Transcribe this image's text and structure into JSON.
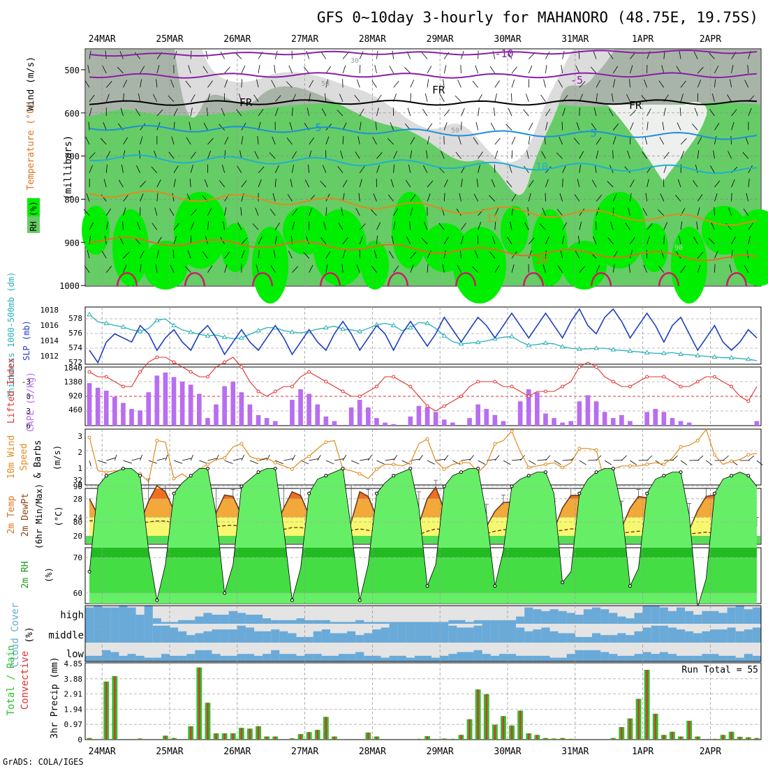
{
  "title": "GFS 0~10day 3-hourly for MAHANORO (48.75E, 19.75S)",
  "footer": "GrADS: COLA/IGES",
  "dates": [
    "24MAR",
    "25MAR",
    "26MAR",
    "27MAR",
    "28MAR",
    "29MAR",
    "30MAR",
    "31MAR",
    "1APR",
    "2APR"
  ],
  "colors": {
    "rh_light": "#dcdcdc",
    "rh_mid": "#a9b4a8",
    "rh_green": "#66cc66",
    "rh_bright": "#00ee00",
    "temp_purple": "#8a1ea8",
    "temp_blue": "#1e90d8",
    "temp_orange": "#e08a1e",
    "slp": "#1f3fbf",
    "thickness": "#2ab0b8",
    "lifted": "#e03030",
    "cape": "#b86ef0",
    "wind": "#e08a1e",
    "cloud": "#6aaad8",
    "precip_total": "#2ec02e",
    "precip_conv": "#e03030"
  },
  "panels": {
    "upper": {
      "ylabel": "(millibars)",
      "legend_wind": "Wind (m/s)",
      "legend_temp": "Temperature (°C)",
      "legend_rh": "RH (%)",
      "yticks": [
        "500",
        "600",
        "700",
        "800",
        "900",
        "1000"
      ],
      "contour_labels": [
        "-10",
        "-5",
        "FR",
        "FR",
        "FR",
        "5",
        "5",
        "10",
        "15",
        "20",
        "30",
        "50",
        "50",
        "90"
      ]
    },
    "slp": {
      "label_thick": "Thickness 1000-500mb (dm)",
      "label_slp": "SLP (mb)",
      "yticks_left": [
        "578",
        "576",
        "574",
        "572"
      ],
      "yticks_right": [
        "1018",
        "1016",
        "1014",
        "1012"
      ]
    },
    "cape": {
      "label_li": "Lifted Index",
      "label_cape": "CAPE (J/kg)",
      "yticks_left": [
        "-3",
        "0",
        "3",
        "6"
      ],
      "yticks_right": [
        "1840",
        "1380",
        "920",
        "460"
      ]
    },
    "wind": {
      "label1": "10m Wind",
      "label2": "Speed",
      "label3": "& Barbs",
      "label4": "(m/s)",
      "yticks": [
        "3",
        "2",
        "1",
        "0"
      ]
    },
    "temp": {
      "label1": "2m Temp",
      "label2": "2m DewPt",
      "label3": "(6hr Min/Max)",
      "label4": "(°C)",
      "yticks": [
        "32",
        "28",
        "24",
        "20"
      ]
    },
    "rh2m": {
      "label1": "2m RH",
      "label2": "(%)",
      "yticks": [
        "90",
        "80",
        "70",
        "60"
      ]
    },
    "cloud": {
      "label1": "Cloud Cover",
      "label2": "(%)",
      "levels": [
        "high",
        "middle",
        "low"
      ]
    },
    "precip": {
      "label1": "Total / Rain",
      "label2": "Convective",
      "label3": "3hr Precip (mm)",
      "run_total": "Run Total = 55",
      "yticks": [
        "4.85",
        "3.88",
        "2.91",
        "1.94",
        "0.97",
        "0"
      ]
    }
  },
  "chart_data": {
    "type": "meteogram",
    "x_start": "23MAR 18Z",
    "step_hours": 3,
    "n_steps": 80,
    "slp_mb": [
      1013,
      1011.5,
      1014,
      1015,
      1014.5,
      1014,
      1016,
      1015,
      1013,
      1014.5,
      1015.5,
      1014,
      1013,
      1015,
      1016,
      1014.5,
      1012.5,
      1014,
      1015.5,
      1014,
      1013,
      1014.5,
      1016,
      1014.5,
      1012.5,
      1014,
      1015.5,
      1014,
      1013,
      1015,
      1016.5,
      1015,
      1013,
      1014.5,
      1016,
      1015,
      1013,
      1015,
      1016.5,
      1015,
      1013.5,
      1015,
      1017,
      1015.5,
      1014,
      1015.5,
      1017,
      1016,
      1014.5,
      1016,
      1017.5,
      1016,
      1014.5,
      1016,
      1017.5,
      1016,
      1014.5,
      1016.5,
      1018,
      1016,
      1015,
      1017,
      1018,
      1016.5,
      1014.5,
      1016,
      1017.5,
      1016,
      1014,
      1016,
      1017,
      1015,
      1013,
      1014.5,
      1016,
      1014,
      1013,
      1014,
      1015.5,
      1014.5
    ],
    "thickness_dm": [
      578.5,
      577.5,
      577.3,
      577,
      576.8,
      576.4,
      576.2,
      576.6,
      577.7,
      577.9,
      577,
      576.4,
      576.1,
      575.8,
      575.6,
      575.7,
      575.4,
      575.2,
      575.3,
      575.8,
      576.3,
      576.7,
      576.7,
      576.3,
      576.1,
      576,
      576.2,
      576.5,
      576.7,
      576.9,
      576.5,
      576.4,
      576.2,
      576.6,
      577.1,
      577.3,
      577,
      576.3,
      576.7,
      577.4,
      577.3,
      576.6,
      575.6,
      574.8,
      574.5,
      574.6,
      574.7,
      574.9,
      575.2,
      575.4,
      575.5,
      574.8,
      574.3,
      574.4,
      574.6,
      574.5,
      574.1,
      573.9,
      573.8,
      573.8,
      573.9,
      573.9,
      573.7,
      573.6,
      573.5,
      573.4,
      573.3,
      573.2,
      573.2,
      573.3,
      573.1,
      573,
      572.9,
      572.8,
      572.7,
      572.6,
      572.6,
      572.5,
      572.4,
      572.2
    ],
    "lifted_index": [
      -2.5,
      -2,
      -2,
      -1.5,
      -1,
      -1,
      -2.5,
      -3.5,
      -4,
      -4,
      -3.5,
      -3,
      -2.5,
      -2,
      -2,
      -3,
      -3.5,
      -4,
      -3,
      -1.5,
      -0.5,
      0,
      -0.5,
      -1,
      -1,
      -2,
      -2.5,
      -2,
      -1.5,
      -1,
      -0.5,
      0,
      0,
      -0.5,
      -1,
      -2,
      -2,
      -1.5,
      -1,
      0,
      1,
      1.5,
      1,
      0.5,
      0,
      -1,
      -1.5,
      -1.5,
      -1.5,
      -1,
      -1,
      -0.5,
      0,
      -0.5,
      -0.5,
      -0.5,
      -1,
      -1.5,
      -3,
      -3.5,
      -3,
      -2,
      -1.5,
      -1,
      -1,
      -1.5,
      -2,
      -2,
      -2,
      -1.5,
      -1,
      -1,
      -1.5,
      -2,
      -2,
      -1.5,
      -1,
      0,
      0.5,
      -1
    ],
    "cape_jkg": [
      1400,
      1250,
      1150,
      950,
      750,
      550,
      500,
      1100,
      1650,
      1750,
      1600,
      1450,
      1350,
      1050,
      250,
      700,
      1300,
      1450,
      1100,
      700,
      350,
      250,
      150,
      0,
      850,
      1200,
      1050,
      700,
      300,
      150,
      0,
      600,
      850,
      600,
      250,
      100,
      50,
      0,
      300,
      650,
      600,
      450,
      200,
      100,
      0,
      250,
      700,
      550,
      350,
      150,
      0,
      800,
      1200,
      1100,
      400,
      250,
      100,
      150,
      800,
      1000,
      800,
      450,
      250,
      350,
      150,
      0,
      450,
      550,
      450,
      250,
      150,
      100,
      0,
      0,
      0,
      0,
      0,
      0,
      0,
      150
    ],
    "wind_ms": [
      3,
      0.9,
      0.8,
      0.9,
      0.8,
      0.7,
      0.7,
      0.2,
      2.8,
      2.7,
      0.4,
      0.7,
      0.3,
      1,
      1.3,
      1.6,
      1.7,
      2.4,
      2.6,
      1.8,
      1.6,
      1.7,
      1.4,
      1.2,
      1,
      1.5,
      1.8,
      2.3,
      2.7,
      2.8,
      1,
      0.9,
      0.7,
      0.4,
      1,
      1.3,
      1.3,
      1.2,
      1.4,
      2.6,
      2.9,
      1.5,
      1,
      1.3,
      1.4,
      1.4,
      0.8,
      1.3,
      2.6,
      2.8,
      3.4,
      2.1,
      1.1,
      1.2,
      1.3,
      1.4,
      1.1,
      1.4,
      2.3,
      2.3,
      2.2,
      0.2,
      1,
      1.2,
      1.2,
      1.2,
      1.3,
      1.4,
      1.3,
      1.7,
      2.4,
      2.5,
      2.8,
      3.5,
      1.9,
      1.3,
      1.5,
      1.6,
      1.9,
      2
    ],
    "temp_c": [
      28,
      24.5,
      23.8,
      23,
      22.5,
      22.5,
      22.7,
      27.5,
      30.8,
      29.5,
      25.5,
      24.5,
      23.5,
      22.7,
      22.3,
      25,
      28.8,
      28.5,
      24.5,
      23,
      22,
      21.8,
      21.8,
      26,
      29.5,
      28.7,
      24.5,
      23,
      22,
      21.5,
      21.5,
      23,
      29.5,
      28.5,
      24,
      22.8,
      22,
      21.6,
      21.5,
      22.5,
      28,
      30.5,
      25.5,
      23,
      22,
      21.5,
      21.2,
      22,
      25.3,
      27.2,
      27.3,
      23,
      22,
      21.5,
      21.2,
      21.3,
      26,
      28.7,
      28.7,
      25,
      22,
      21.6,
      21.4,
      21.7,
      26,
      28.5,
      28.2,
      24,
      22,
      21.5,
      21,
      21.2,
      25.5,
      28.5,
      28.8,
      23.5,
      21.5,
      21,
      20.5,
      22.5
    ],
    "dewpt_c": [
      23.2,
      23.5,
      23,
      22.8,
      22.7,
      22.6,
      22.7,
      23,
      23.2,
      23.2,
      22.8,
      22.5,
      22.2,
      22,
      21.8,
      22,
      22.2,
      22.3,
      22,
      21.8,
      21.5,
      21.3,
      21.2,
      21.4,
      21.8,
      21.8,
      21.5,
      21.3,
      21,
      20.8,
      20.8,
      21.2,
      21.5,
      21.2,
      21,
      20.6,
      20.3,
      20,
      20,
      20.3,
      21,
      21.5,
      21.3,
      21,
      20.7,
      20.5,
      20.3,
      20.5,
      21,
      21.3,
      21.5,
      21.4,
      21.3,
      21.2,
      21,
      21,
      21.2,
      21.5,
      21.5,
      21.2,
      20.8,
      20.6,
      20.5,
      20.6,
      20.8,
      21,
      21,
      20.9,
      20.8,
      20.7,
      20.5,
      20.4,
      20.6,
      20.8,
      20.6,
      20.4,
      20.2,
      20,
      19.8,
      21
    ],
    "rh2m_pct": [
      66,
      90,
      93,
      94,
      95,
      95,
      93,
      72,
      58,
      68,
      88,
      91,
      93,
      95,
      95,
      82,
      60,
      68,
      90,
      92,
      94,
      95,
      95,
      78,
      58,
      67,
      88,
      92,
      93,
      94,
      95,
      78,
      58,
      68,
      88,
      91,
      93,
      94,
      95,
      84,
      62,
      68,
      90,
      93,
      94,
      95,
      95,
      82,
      62,
      72,
      90,
      92,
      93,
      94,
      94,
      88,
      63,
      66,
      88,
      92,
      94,
      95,
      95,
      84,
      62,
      67,
      88,
      92,
      93,
      94,
      94,
      82,
      56,
      64,
      88,
      92,
      93,
      94,
      93,
      90
    ],
    "precip_total_mm": [
      0.1,
      0,
      3.7,
      4.05,
      0,
      0,
      0.07,
      0,
      0,
      0.25,
      0.1,
      0,
      0.85,
      4.6,
      2.35,
      0.4,
      0.4,
      0.4,
      0.75,
      0.7,
      0.85,
      0.2,
      0.2,
      0,
      0.08,
      0.35,
      0.48,
      0.62,
      1.45,
      0.2,
      0,
      0,
      0,
      0.45,
      0.2,
      0,
      0,
      0,
      0,
      0.05,
      0.22,
      0,
      0.07,
      0.05,
      0.3,
      1.3,
      3.2,
      2.9,
      0.95,
      1.5,
      0.9,
      1.85,
      0.4,
      0.3,
      0.1,
      0.07,
      0.1,
      0.05,
      0,
      0,
      0,
      0,
      0.1,
      0.8,
      1.35,
      2.6,
      4.45,
      1.65,
      0.3,
      0.5,
      0.2,
      1.2,
      0.2,
      0,
      0.05,
      0.3,
      0.5,
      0.18,
      0.15,
      0.1
    ],
    "cloud_high": [
      0.9,
      1,
      0.9,
      0.9,
      1,
      0.9,
      0.5,
      1,
      0.3,
      0.1,
      0.1,
      0.2,
      0.2,
      0.4,
      0.6,
      0.5,
      0.5,
      0.7,
      0.6,
      0.5,
      0.5,
      0.3,
      0.2,
      0.2,
      0.2,
      0.3,
      0.2,
      0.2,
      0.2,
      0.1,
      0.1,
      0.1,
      0.2,
      0.1,
      0.1,
      0.1,
      0.1,
      0.1,
      0.1,
      0.1,
      0.1,
      0.1,
      0.1,
      0.2,
      0.2,
      0.1,
      0.2,
      0.2,
      0.2,
      0.2,
      0.2,
      0.4,
      0.9,
      0.8,
      0.7,
      0.8,
      0.7,
      0.6,
      0.5,
      0.8,
      0.9,
      0.8,
      0.6,
      0.4,
      0.3,
      0.6,
      1,
      1,
      0.9,
      0.7,
      0.9,
      0.7,
      0.5,
      0.7,
      0.7,
      0.6,
      0.9,
      1,
      0.8,
      0.9
    ],
    "cloud_mid": [
      1,
      1,
      1,
      1,
      1,
      1,
      1,
      1,
      0.9,
      0.9,
      0.8,
      0.6,
      0.4,
      0.5,
      0.6,
      0.7,
      0.7,
      0.7,
      0.9,
      0.8,
      0.6,
      0.6,
      0.7,
      0.6,
      0.5,
      0.3,
      0.3,
      0.6,
      0.7,
      0.5,
      0.5,
      0.6,
      0.4,
      0.5,
      0.7,
      0.8,
      1,
      1,
      1,
      1,
      1,
      1,
      1,
      0.9,
      0.8,
      0.8,
      0.9,
      1,
      1,
      1,
      1,
      0.8,
      0.6,
      0.7,
      0.8,
      0.6,
      0.5,
      0.5,
      0.3,
      0.3,
      0.5,
      0.4,
      0.4,
      0.5,
      0.4,
      0.6,
      0.8,
      0.9,
      0.9,
      0.8,
      0.7,
      0.6,
      0.5,
      0.6,
      0.7,
      0.7,
      0.8,
      0.6,
      0.7,
      0.8
    ],
    "cloud_low": [
      0.3,
      0.3,
      0.6,
      0.5,
      0.3,
      0.4,
      0.3,
      0.2,
      0.2,
      0.4,
      0.3,
      0.3,
      0.4,
      0.6,
      0.6,
      0.4,
      0.3,
      0.3,
      0.4,
      0.4,
      0.3,
      0.4,
      0.6,
      0.4,
      0.4,
      0.3,
      0.4,
      0.4,
      0.3,
      0.3,
      0.4,
      0.4,
      0.5,
      0.3,
      0.3,
      0.2,
      0.3,
      0.3,
      0.2,
      0.3,
      0.3,
      0.2,
      0.3,
      0.4,
      0.5,
      0.5,
      0.6,
      0.4,
      0.3,
      0.4,
      0.4,
      0.3,
      0.3,
      0.3,
      0.3,
      0.2,
      0.2,
      0.4,
      0.6,
      0.6,
      0.6,
      0.5,
      0.4,
      0.3,
      0.3,
      0.4,
      0.5,
      0.4,
      0.5,
      0.4,
      0.3,
      0.3,
      0.3,
      0.4,
      0.4,
      0.3,
      0.3,
      0.2,
      0.4,
      0.3
    ]
  }
}
